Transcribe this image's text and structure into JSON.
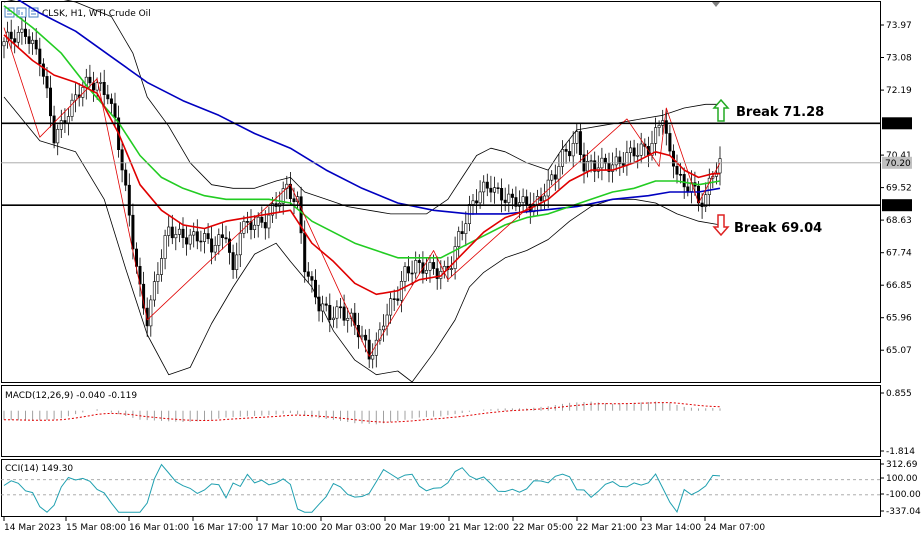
{
  "header": {
    "symbol": "CLSK",
    "timeframe": "H1",
    "name": "WTI Crude Oil"
  },
  "macd_label": "MACD(12,26,9) -0.040 -0.119",
  "cci_label": "CCI(14) 149.30",
  "colors": {
    "up_candle": "#000000",
    "down_candle": "#000000",
    "ma_fast": "#e00000",
    "ma_mid": "#22cc22",
    "ma_slow": "#0000c0",
    "bands": "#000000",
    "zigzag": "#e00000",
    "macd_hist": "#a0a0a0",
    "macd_signal": "#e00000",
    "cci_line": "#20a0b0",
    "arrow_up": "#22aa22",
    "arrow_down": "#dd2222"
  },
  "chart_data": [
    {
      "type": "candlestick",
      "title": "CLSK, H1, WTI Crude Oil",
      "x_labels": [
        "14 Mar 2023",
        "15 Mar 08:00",
        "16 Mar 01:00",
        "16 Mar 17:00",
        "17 Mar 10:00",
        "20 Mar 03:00",
        "20 Mar 19:00",
        "21 Mar 12:00",
        "22 Mar 05:00",
        "22 Mar 21:00",
        "23 Mar 14:00",
        "24 Mar 07:00"
      ],
      "y_ticks": [
        73.97,
        73.08,
        72.19,
        70.41,
        69.52,
        68.63,
        67.74,
        66.85,
        65.96,
        65.07
      ],
      "ylim": [
        64.2,
        74.6
      ],
      "price_tags": [
        {
          "value": "71.28",
          "style": "line"
        },
        {
          "value": "70.20",
          "style": "current"
        },
        {
          "value": "69.04",
          "style": "line"
        }
      ],
      "levels": [
        {
          "value": 71.28,
          "label": "Break 71.28",
          "direction": "up"
        },
        {
          "value": 69.04,
          "label": "Break 69.04",
          "direction": "down"
        }
      ],
      "current_price": 70.2,
      "close_path": [
        [
          0,
          73.4
        ],
        [
          6,
          73.9
        ],
        [
          10,
          73.0
        ],
        [
          14,
          70.9
        ],
        [
          18,
          71.7
        ],
        [
          22,
          72.2
        ],
        [
          26,
          72.4
        ],
        [
          29,
          72.2
        ],
        [
          31,
          71.3
        ],
        [
          34,
          69.3
        ],
        [
          36,
          68.0
        ],
        [
          38,
          66.8
        ],
        [
          40,
          66.0
        ],
        [
          43,
          67.2
        ],
        [
          46,
          68.3
        ],
        [
          50,
          68.3
        ],
        [
          54,
          68.1
        ],
        [
          58,
          67.9
        ],
        [
          62,
          68.4
        ],
        [
          64,
          67.1
        ],
        [
          66,
          68.3
        ],
        [
          68,
          68.4
        ],
        [
          70,
          68.6
        ],
        [
          73,
          68.7
        ],
        [
          76,
          69.0
        ],
        [
          79,
          69.4
        ],
        [
          82,
          69.2
        ],
        [
          84,
          67.5
        ],
        [
          86,
          66.8
        ],
        [
          88,
          66.2
        ],
        [
          91,
          66.0
        ],
        [
          94,
          66.3
        ],
        [
          97,
          65.9
        ],
        [
          100,
          65.3
        ],
        [
          102,
          64.9
        ],
        [
          104,
          65.3
        ],
        [
          106,
          66.0
        ],
        [
          108,
          66.3
        ],
        [
          110,
          66.5
        ],
        [
          112,
          67.1
        ],
        [
          115,
          67.5
        ],
        [
          118,
          67.4
        ],
        [
          121,
          67.1
        ],
        [
          123,
          67.1
        ],
        [
          125,
          67.5
        ],
        [
          127,
          68.3
        ],
        [
          130,
          68.9
        ],
        [
          133,
          69.3
        ],
        [
          136,
          69.6
        ],
        [
          139,
          69.4
        ],
        [
          142,
          69.1
        ],
        [
          145,
          69.0
        ],
        [
          148,
          69.1
        ],
        [
          151,
          69.5
        ],
        [
          154,
          69.8
        ],
        [
          156,
          70.3
        ],
        [
          158,
          70.6
        ],
        [
          160,
          71.0
        ],
        [
          162,
          70.2
        ],
        [
          165,
          70.0
        ],
        [
          168,
          70.1
        ],
        [
          171,
          70.3
        ],
        [
          174,
          70.4
        ],
        [
          177,
          70.4
        ],
        [
          180,
          70.6
        ],
        [
          182,
          71.1
        ],
        [
          184,
          71.6
        ],
        [
          186,
          70.3
        ],
        [
          188,
          69.9
        ],
        [
          190,
          69.4
        ],
        [
          192,
          69.8
        ],
        [
          194,
          69.2
        ],
        [
          196,
          69.3
        ],
        [
          198,
          69.8
        ],
        [
          200,
          70.1
        ]
      ],
      "zigzag": [
        [
          0,
          73.9
        ],
        [
          10,
          70.9
        ],
        [
          26,
          72.5
        ],
        [
          40,
          65.9
        ],
        [
          80,
          69.6
        ],
        [
          102,
          64.9
        ],
        [
          120,
          67.8
        ],
        [
          124,
          67.0
        ],
        [
          174,
          71.4
        ],
        [
          183,
          70.1
        ],
        [
          185,
          71.7
        ],
        [
          194,
          69.1
        ],
        [
          200,
          70.2
        ]
      ],
      "ma_fast": [
        [
          0,
          73.7
        ],
        [
          8,
          73.0
        ],
        [
          14,
          72.6
        ],
        [
          20,
          72.4
        ],
        [
          26,
          72.1
        ],
        [
          32,
          71.0
        ],
        [
          38,
          69.6
        ],
        [
          44,
          68.9
        ],
        [
          50,
          68.5
        ],
        [
          56,
          68.4
        ],
        [
          62,
          68.6
        ],
        [
          68,
          68.7
        ],
        [
          74,
          68.8
        ],
        [
          80,
          68.9
        ],
        [
          86,
          68.0
        ],
        [
          92,
          67.5
        ],
        [
          98,
          66.9
        ],
        [
          104,
          66.6
        ],
        [
          110,
          66.7
        ],
        [
          116,
          67.0
        ],
        [
          122,
          67.1
        ],
        [
          128,
          67.7
        ],
        [
          134,
          68.3
        ],
        [
          140,
          68.7
        ],
        [
          146,
          68.9
        ],
        [
          152,
          69.2
        ],
        [
          158,
          69.7
        ],
        [
          164,
          70.0
        ],
        [
          170,
          70.0
        ],
        [
          176,
          70.2
        ],
        [
          182,
          70.5
        ],
        [
          186,
          70.4
        ],
        [
          190,
          70.0
        ],
        [
          194,
          69.8
        ],
        [
          198,
          69.9
        ],
        [
          200,
          69.9
        ]
      ],
      "ma_mid": [
        [
          0,
          74.5
        ],
        [
          8,
          73.9
        ],
        [
          16,
          73.2
        ],
        [
          24,
          72.2
        ],
        [
          32,
          71.3
        ],
        [
          38,
          70.4
        ],
        [
          44,
          69.8
        ],
        [
          50,
          69.5
        ],
        [
          56,
          69.3
        ],
        [
          62,
          69.2
        ],
        [
          68,
          69.2
        ],
        [
          74,
          69.2
        ],
        [
          80,
          69.1
        ],
        [
          86,
          68.6
        ],
        [
          92,
          68.3
        ],
        [
          98,
          68.0
        ],
        [
          104,
          67.8
        ],
        [
          110,
          67.6
        ],
        [
          116,
          67.6
        ],
        [
          122,
          67.6
        ],
        [
          128,
          67.9
        ],
        [
          134,
          68.2
        ],
        [
          140,
          68.5
        ],
        [
          146,
          68.7
        ],
        [
          152,
          68.8
        ],
        [
          158,
          69.0
        ],
        [
          164,
          69.2
        ],
        [
          170,
          69.4
        ],
        [
          176,
          69.5
        ],
        [
          182,
          69.7
        ],
        [
          188,
          69.7
        ],
        [
          194,
          69.6
        ],
        [
          200,
          69.7
        ]
      ],
      "ma_slow": [
        [
          0,
          74.9
        ],
        [
          10,
          74.3
        ],
        [
          20,
          73.8
        ],
        [
          30,
          73.1
        ],
        [
          40,
          72.4
        ],
        [
          50,
          71.9
        ],
        [
          60,
          71.5
        ],
        [
          70,
          71.0
        ],
        [
          80,
          70.6
        ],
        [
          90,
          70.0
        ],
        [
          100,
          69.5
        ],
        [
          110,
          69.1
        ],
        [
          120,
          68.9
        ],
        [
          130,
          68.8
        ],
        [
          140,
          68.8
        ],
        [
          150,
          68.9
        ],
        [
          160,
          69.0
        ],
        [
          170,
          69.2
        ],
        [
          180,
          69.3
        ],
        [
          186,
          69.4
        ],
        [
          190,
          69.4
        ],
        [
          194,
          69.4
        ],
        [
          200,
          69.5
        ]
      ],
      "band_upper": [
        [
          0,
          74.6
        ],
        [
          10,
          74.8
        ],
        [
          20,
          74.6
        ],
        [
          30,
          74.2
        ],
        [
          36,
          73.2
        ],
        [
          40,
          72.0
        ],
        [
          46,
          71.2
        ],
        [
          52,
          70.2
        ],
        [
          58,
          69.6
        ],
        [
          64,
          69.5
        ],
        [
          70,
          69.5
        ],
        [
          76,
          69.7
        ],
        [
          80,
          69.8
        ],
        [
          84,
          69.4
        ],
        [
          90,
          69.2
        ],
        [
          96,
          69.0
        ],
        [
          102,
          68.9
        ],
        [
          108,
          68.8
        ],
        [
          112,
          68.8
        ],
        [
          118,
          68.8
        ],
        [
          124,
          69.2
        ],
        [
          128,
          69.8
        ],
        [
          132,
          70.4
        ],
        [
          136,
          70.6
        ],
        [
          140,
          70.5
        ],
        [
          146,
          70.2
        ],
        [
          152,
          70.0
        ],
        [
          156,
          70.6
        ],
        [
          160,
          71.1
        ],
        [
          166,
          71.2
        ],
        [
          172,
          71.3
        ],
        [
          178,
          71.4
        ],
        [
          184,
          71.5
        ],
        [
          190,
          71.7
        ],
        [
          196,
          71.8
        ],
        [
          200,
          71.8
        ]
      ],
      "band_lower": [
        [
          0,
          72.0
        ],
        [
          10,
          70.8
        ],
        [
          20,
          70.5
        ],
        [
          28,
          69.2
        ],
        [
          34,
          67.3
        ],
        [
          40,
          65.5
        ],
        [
          46,
          64.4
        ],
        [
          52,
          64.6
        ],
        [
          58,
          65.8
        ],
        [
          64,
          66.8
        ],
        [
          70,
          67.7
        ],
        [
          76,
          68.0
        ],
        [
          80,
          67.5
        ],
        [
          86,
          66.8
        ],
        [
          92,
          65.6
        ],
        [
          98,
          64.8
        ],
        [
          104,
          64.4
        ],
        [
          110,
          64.5
        ],
        [
          114,
          64.2
        ],
        [
          120,
          65.0
        ],
        [
          126,
          65.9
        ],
        [
          130,
          66.8
        ],
        [
          134,
          67.2
        ],
        [
          140,
          67.6
        ],
        [
          146,
          67.8
        ],
        [
          152,
          68.1
        ],
        [
          158,
          68.6
        ],
        [
          164,
          69.0
        ],
        [
          170,
          69.2
        ],
        [
          176,
          69.2
        ],
        [
          182,
          69.1
        ],
        [
          188,
          68.8
        ],
        [
          194,
          68.6
        ],
        [
          200,
          68.5
        ]
      ]
    },
    {
      "type": "bar",
      "title": "MACD(12,26,9) -0.040 -0.119",
      "y_ticks": [
        0.855,
        -1.814
      ],
      "ylim": [
        -2.2,
        1.2
      ]
    },
    {
      "type": "line",
      "title": "CCI(14) 149.30",
      "y_ticks": [
        312.69,
        100.0,
        -100.0,
        -337.04
      ],
      "y_tick_labels": [
        "312.69",
        "100.00",
        "-100.00",
        "-337.04"
      ],
      "levels": [
        100,
        -100
      ],
      "ylim": [
        -380,
        360
      ]
    }
  ]
}
